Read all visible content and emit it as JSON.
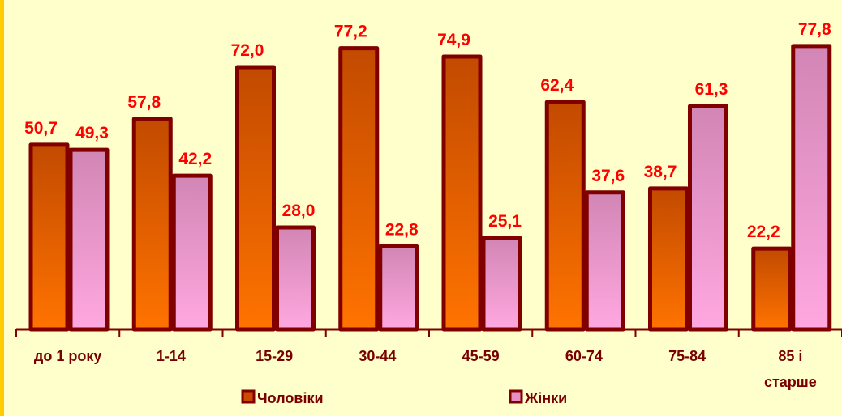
{
  "chart_data": {
    "type": "bar",
    "categories": [
      [
        "до 1 року"
      ],
      [
        "1-14"
      ],
      [
        "15-29"
      ],
      [
        "30-44"
      ],
      [
        "45-59"
      ],
      [
        "60-74"
      ],
      [
        "75-84"
      ],
      [
        "85 і",
        "старше"
      ]
    ],
    "series": [
      {
        "name": "Чоловіки",
        "values": [
          50.7,
          57.8,
          72.0,
          77.2,
          74.9,
          62.4,
          38.7,
          22.2
        ],
        "labels": [
          "50,7",
          "57,8",
          "72,0",
          "77,2",
          "74,9",
          "62,4",
          "38,7",
          "22,2"
        ],
        "color": "#CC4A00"
      },
      {
        "name": "Жінки",
        "values": [
          49.3,
          42.2,
          28.0,
          22.8,
          25.1,
          37.6,
          61.3,
          77.8
        ],
        "labels": [
          "49,3",
          "42,2",
          "28,0",
          "22,8",
          "25,1",
          "37,6",
          "61,3",
          "77,8"
        ],
        "color": "#E68FC2"
      }
    ],
    "ylim": [
      0,
      100
    ],
    "grid": false,
    "legend": "bottom",
    "colors": {
      "border": "#800000",
      "label": "#FF0000",
      "axis_text": "#7A0000",
      "background": "#FFFFCC"
    }
  }
}
